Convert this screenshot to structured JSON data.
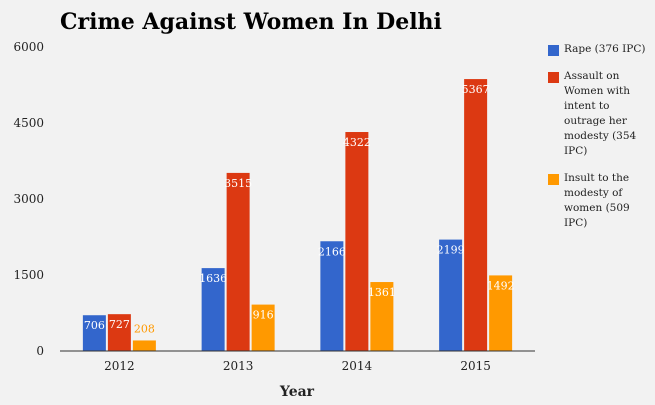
{
  "chart_data": {
    "type": "bar",
    "title": "Crime Against Women In Delhi",
    "xlabel": "Year",
    "ylabel": "",
    "categories": [
      "2012",
      "2013",
      "2014",
      "2015"
    ],
    "ylim": [
      0,
      6000
    ],
    "yticks": [
      "0",
      "1500",
      "3000",
      "4500",
      "6000"
    ],
    "grid": false,
    "legend_position": "right",
    "series": [
      {
        "name": "Rape (376 IPC)",
        "color": "#3366cc",
        "values": [
          706,
          1636,
          2166,
          2199
        ],
        "labels": [
          "706",
          "1636",
          "2166",
          "2199"
        ]
      },
      {
        "name": "Assault on Women with intent to outrage her modesty (354 IPC)",
        "color": "#dc3912",
        "values": [
          727,
          3515,
          4322,
          5367
        ],
        "labels": [
          "727",
          "3515",
          "4322",
          "5367"
        ]
      },
      {
        "name": "Insult to the modesty of women (509 IPC)",
        "color": "#ff9900",
        "values": [
          208,
          916,
          1361,
          1492
        ],
        "labels": [
          "208",
          "916",
          "1361",
          "1492"
        ]
      }
    ]
  }
}
